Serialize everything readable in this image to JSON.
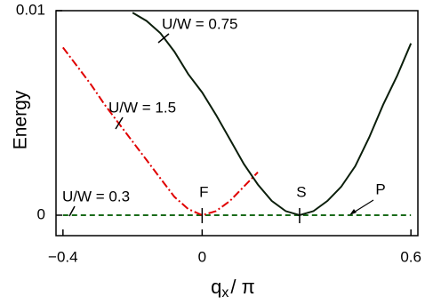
{
  "chart_data": {
    "type": "line",
    "x_label": [
      "q",
      "x",
      "/ π"
    ],
    "y_label": "Energy",
    "x": [
      -0.4,
      -0.36,
      -0.32,
      -0.28,
      -0.24,
      -0.2,
      -0.16,
      -0.12,
      -0.08,
      -0.04,
      0,
      0.04,
      0.08,
      0.12,
      0.16,
      0.2,
      0.24,
      0.28,
      0.32,
      0.36,
      0.4,
      0.44,
      0.48,
      0.52,
      0.56,
      0.6
    ],
    "series": [
      {
        "name": "U/W = 0.75",
        "color": "#0b1e0b",
        "style": "solid",
        "values": [
          null,
          null,
          null,
          null,
          null,
          0.0099,
          0.0095,
          0.0089,
          0.008,
          0.0069,
          0.006,
          0.0049,
          0.0037,
          0.0025,
          0.0015,
          0.0007,
          0.0002,
          0,
          0.0002,
          0.0007,
          0.0014,
          0.0024,
          0.0038,
          0.0054,
          0.0068,
          0.0084
        ]
      },
      {
        "name": "U/W = 1.5",
        "color": "#e00000",
        "style": "dashdot",
        "values": [
          0.0082,
          0.0073,
          0.0064,
          0.0054,
          0.0045,
          0.0036,
          0.0027,
          0.0018,
          0.0009,
          0.0003,
          0,
          0.0002,
          0.0007,
          0.0014,
          0.0021,
          null,
          null,
          null,
          null,
          null,
          null,
          null,
          null,
          null,
          null,
          null
        ]
      },
      {
        "name": "U/W = 0.3",
        "color": "#1a6b1a",
        "style": "dashed",
        "values": [
          0,
          0,
          0,
          0,
          0,
          0,
          0,
          0,
          0,
          0,
          0,
          0,
          0,
          0,
          0,
          0,
          0,
          0,
          0,
          0,
          0,
          0,
          0,
          0,
          0,
          0
        ]
      }
    ],
    "annotations": [
      "F",
      "S",
      "P"
    ],
    "xlim": [
      -0.42,
      0.62
    ],
    "ylim": [
      -0.001,
      0.01
    ],
    "xticks": [
      {
        "value": -0.4,
        "label": "−0.4"
      },
      0,
      0.6
    ],
    "yticks": [
      0,
      0.01
    ],
    "grid": false
  }
}
